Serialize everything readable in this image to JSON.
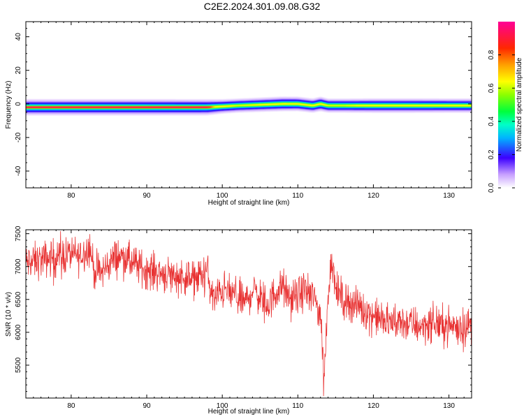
{
  "page_title": "C2E2.2024.301.09.08.G32",
  "colors": {
    "snr_line": "#e83232",
    "axis": "#000000",
    "background": "#ffffff"
  },
  "chart_data": [
    {
      "type": "heatmap",
      "xlabel": "Height of straight line (km)",
      "ylabel": "Frequency (Hz)",
      "xlim": [
        74.0,
        133.0
      ],
      "ylim": [
        -50,
        49
      ],
      "x_ticks": [
        80,
        90,
        100,
        110,
        120,
        130
      ],
      "y_ticks": [
        -40,
        -20,
        0,
        20,
        40
      ],
      "colorbar": {
        "label": "Normalized spectral amplitude",
        "range": [
          0.0,
          1.0
        ],
        "ticks": [
          "0.0",
          "0.2",
          "0.4",
          "0.6",
          "0.8"
        ],
        "colormap": "rainbow"
      },
      "ridge": {
        "x": [
          74,
          80,
          90,
          98,
          100,
          102,
          105,
          108,
          110,
          112,
          113,
          114,
          116,
          120,
          125,
          130,
          133
        ],
        "center_hz": [
          -2,
          -2,
          -2,
          -2,
          -1.5,
          -1,
          -0.5,
          0,
          0,
          -1,
          0,
          -1,
          -1,
          -1,
          -1,
          -1,
          -1
        ],
        "peak_amplitude": [
          1.0,
          1.0,
          1.0,
          0.95,
          0.55,
          0.45,
          0.5,
          0.6,
          0.55,
          0.5,
          0.6,
          0.45,
          0.45,
          0.55,
          0.55,
          0.5,
          0.5
        ]
      }
    },
    {
      "type": "line",
      "xlabel": "Height of straight line (km)",
      "ylabel": "SNR (10 * v/v)",
      "xlim": [
        74.0,
        133.0
      ],
      "ylim": [
        5000,
        7560
      ],
      "x_ticks": [
        80,
        90,
        100,
        110,
        120,
        130
      ],
      "y_ticks": [
        5500,
        6000,
        6500,
        7000,
        7500
      ],
      "series": [
        {
          "x": [
            74,
            76,
            78,
            80,
            81,
            82,
            82.5,
            83,
            84,
            85,
            86,
            87,
            88,
            90,
            92,
            94,
            95,
            96,
            97,
            98,
            98.5,
            99,
            100,
            101,
            102,
            103,
            104,
            105,
            106,
            107,
            108,
            109,
            110,
            111,
            112,
            113,
            113.5,
            114,
            114.5,
            115,
            116,
            118,
            120,
            122,
            124,
            126,
            128,
            130,
            132,
            133
          ],
          "y": [
            7050,
            7100,
            7150,
            7200,
            7150,
            7250,
            7300,
            6950,
            6900,
            7050,
            7150,
            7150,
            7050,
            6950,
            6900,
            6850,
            6850,
            6800,
            6850,
            6950,
            6600,
            6500,
            6650,
            6600,
            6550,
            6450,
            6650,
            6550,
            6400,
            6600,
            6700,
            6500,
            6550,
            6650,
            6550,
            6300,
            5300,
            6600,
            7150,
            6650,
            6500,
            6400,
            6250,
            6150,
            6150,
            6100,
            6150,
            6100,
            6100,
            6100
          ],
          "noise_amplitude": 140
        }
      ]
    }
  ]
}
